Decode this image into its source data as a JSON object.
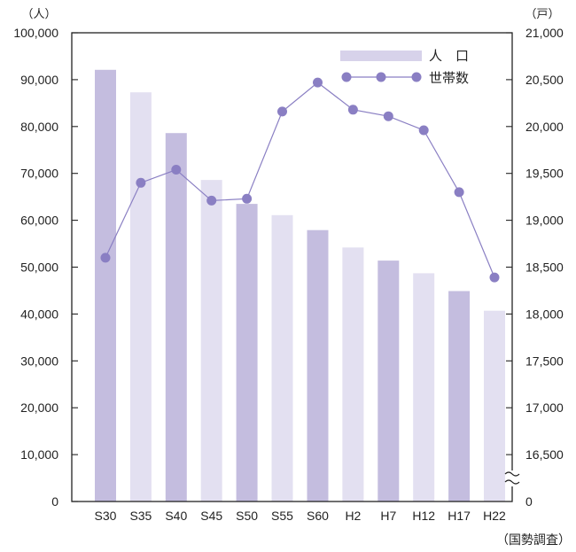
{
  "chart_data": {
    "type": "bar+line",
    "categories": [
      "S30",
      "S35",
      "S40",
      "S45",
      "S50",
      "S55",
      "S60",
      "H2",
      "H7",
      "H12",
      "H17",
      "H22"
    ],
    "series": [
      {
        "name": "人　口",
        "type": "bar",
        "axis": "left",
        "values": [
          92100,
          87300,
          78600,
          68600,
          63500,
          61100,
          57900,
          54200,
          51400,
          48700,
          44900,
          40700
        ],
        "colors": [
          "#c4bddf",
          "#e3e0f1"
        ]
      },
      {
        "name": "世帯数",
        "type": "line",
        "axis": "right",
        "values": [
          18600,
          19400,
          19540,
          19210,
          19230,
          20160,
          20470,
          20180,
          20110,
          19960,
          19300,
          18390
        ],
        "color": "#8a7fc3"
      }
    ],
    "left_axis": {
      "unit": "（人）",
      "ylim": [
        0,
        100000
      ],
      "ticks": [
        {
          "value": 0,
          "label": "0"
        },
        {
          "value": 10000,
          "label": "10,000"
        },
        {
          "value": 20000,
          "label": "20,000"
        },
        {
          "value": 30000,
          "label": "30,000"
        },
        {
          "value": 40000,
          "label": "40,000"
        },
        {
          "value": 50000,
          "label": "50,000"
        },
        {
          "value": 60000,
          "label": "60,000"
        },
        {
          "value": 70000,
          "label": "70,000"
        },
        {
          "value": 80000,
          "label": "80,000"
        },
        {
          "value": 90000,
          "label": "90,000"
        },
        {
          "value": 100000,
          "label": "100,000"
        }
      ]
    },
    "right_axis": {
      "unit": "（戸）",
      "ylim": [
        16000,
        21000
      ],
      "axis_break": true,
      "zero_label": "0",
      "ticks": [
        {
          "value": 16500,
          "label": "16,500"
        },
        {
          "value": 17000,
          "label": "17,000"
        },
        {
          "value": 17500,
          "label": "17,500"
        },
        {
          "value": 18000,
          "label": "18,000"
        },
        {
          "value": 18500,
          "label": "18,500"
        },
        {
          "value": 19000,
          "label": "19,000"
        },
        {
          "value": 19500,
          "label": "19,500"
        },
        {
          "value": 20000,
          "label": "20,000"
        },
        {
          "value": 20500,
          "label": "20,500"
        },
        {
          "value": 21000,
          "label": "21,000"
        }
      ]
    },
    "legend": {
      "position": "top-right",
      "bar_label": "人　口",
      "line_label": "世帯数"
    },
    "source_note": "（国勢調査）",
    "grid": false
  }
}
